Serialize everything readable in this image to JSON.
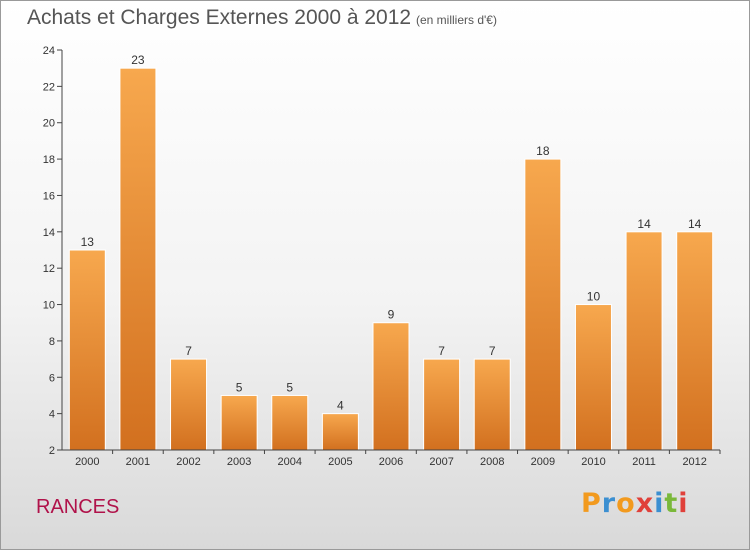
{
  "header": {
    "title": "Achats et Charges Externes 2000 à 2012",
    "unit": "(en milliers d'€)"
  },
  "footer": {
    "town": "RANCES",
    "logo_letters": [
      "P",
      "r",
      "o",
      "x",
      "i",
      "t",
      "i"
    ],
    "logo_colors": [
      "#f29a1e",
      "#3b8fd1",
      "#f29a1e",
      "#e0403a",
      "#3b8fd1",
      "#7ab83a",
      "#e0403a"
    ]
  },
  "chart_data": {
    "type": "bar",
    "title": "Achats et Charges Externes 2000 à 2012",
    "subtitle": "(en milliers d'€)",
    "xlabel": "",
    "ylabel": "",
    "categories": [
      "2000",
      "2001",
      "2002",
      "2003",
      "2004",
      "2005",
      "2006",
      "2007",
      "2008",
      "2009",
      "2010",
      "2011",
      "2012"
    ],
    "values": [
      13,
      23,
      7,
      5,
      5,
      4,
      9,
      7,
      7,
      18,
      10,
      14,
      14
    ],
    "ylim": [
      2,
      24
    ],
    "yticks": [
      2,
      4,
      6,
      8,
      10,
      12,
      14,
      16,
      18,
      20,
      22,
      24
    ],
    "grid": false,
    "colors": {
      "bar_light": "#f7a84e",
      "bar_dark": "#d2701f",
      "axis": "#444444"
    }
  }
}
